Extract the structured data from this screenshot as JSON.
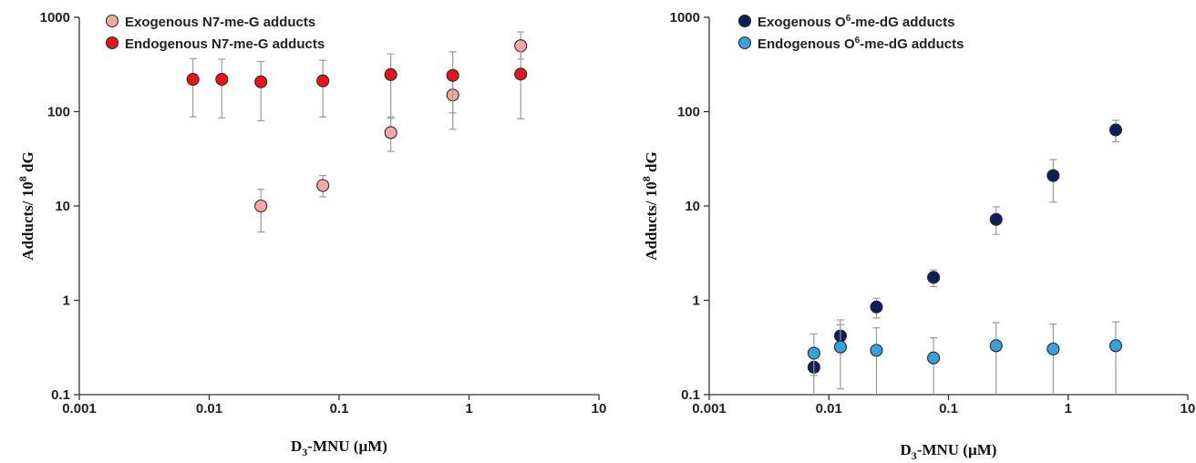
{
  "chart_data": [
    {
      "type": "scatter",
      "xscale": "log",
      "yscale": "log",
      "xlim": [
        0.001,
        10
      ],
      "ylim": [
        0.1,
        1000
      ],
      "xticks": [
        "0.001",
        "0.01",
        "0.1",
        "1",
        "10"
      ],
      "yticks": [
        "0.1",
        "1",
        "10",
        "100",
        "1000"
      ],
      "xlabel": {
        "main": "D",
        "sub": "3",
        "rest": "-MNU (µM)"
      },
      "ylabel": {
        "main": "Adducts/ 10",
        "sup": "8",
        "rest": " dG"
      },
      "legend": "top-left",
      "series": [
        {
          "name": "Exogenous N7-me-G adducts",
          "name_parts": {
            "pre": "Exogenous N7-me-G adducts"
          },
          "color": "#f4a8a4",
          "x": [
            0.025,
            0.075,
            0.25,
            0.75,
            2.5
          ],
          "y": [
            10,
            16.5,
            60,
            150,
            500
          ],
          "err_low": [
            5.3,
            12.5,
            38,
            65,
            360
          ],
          "err_high": [
            15,
            21,
            85,
            240,
            700
          ]
        },
        {
          "name": "Endogenous N7-me-G adducts",
          "name_parts": {
            "pre": "Endogenous N7-me-G adducts"
          },
          "color": "#e8141c",
          "x": [
            0.0075,
            0.0125,
            0.025,
            0.075,
            0.25,
            0.75,
            2.5
          ],
          "y": [
            220,
            220,
            207,
            212,
            247,
            242,
            250
          ],
          "err_low": [
            88,
            86,
            80,
            88,
            88,
            97,
            84
          ],
          "err_high": [
            365,
            360,
            340,
            350,
            410,
            430,
            430
          ]
        }
      ]
    },
    {
      "type": "scatter",
      "xscale": "log",
      "yscale": "log",
      "xlim": [
        0.001,
        10
      ],
      "ylim": [
        0.1,
        1000
      ],
      "xticks": [
        "0.001",
        "0.01",
        "0.1",
        "1",
        "10"
      ],
      "yticks": [
        "0.1",
        "1",
        "10",
        "100",
        "1000"
      ],
      "xlabel": {
        "main": "D",
        "sub": "3",
        "rest": "-MNU (µM)"
      },
      "ylabel": {
        "main": "Adducts/ 10",
        "sup": "8",
        "rest": " dG"
      },
      "legend": "top-left",
      "series": [
        {
          "name": "Exogenous O6-me-dG adducts",
          "name_parts": {
            "pre": "Exogenous O",
            "sup": "6",
            "post": "-me-dG adducts"
          },
          "color": "#0b1f5c",
          "x": [
            0.0075,
            0.0125,
            0.025,
            0.075,
            0.25,
            0.75,
            2.5
          ],
          "y": [
            0.195,
            0.42,
            0.85,
            1.75,
            7.2,
            21,
            64
          ],
          "err_low": [
            0.16,
            0.3,
            0.65,
            1.4,
            5,
            11,
            48
          ],
          "err_high": [
            0.22,
            0.55,
            1.05,
            2.1,
            9.8,
            31,
            81
          ]
        },
        {
          "name": "Endogenous O6-me-dG adducts",
          "name_parts": {
            "pre": "Endogenous O",
            "sup": "6",
            "post": "-me-dG adducts"
          },
          "color": "#3aa0da",
          "x": [
            0.0075,
            0.0125,
            0.025,
            0.075,
            0.25,
            0.75,
            2.5
          ],
          "y": [
            0.275,
            0.32,
            0.295,
            0.245,
            0.33,
            0.305,
            0.33
          ],
          "err_low": [
            0.1,
            0.115,
            0.1,
            0.1,
            0.1,
            0.1,
            0.1
          ],
          "err_high": [
            0.44,
            0.62,
            0.51,
            0.4,
            0.58,
            0.56,
            0.59
          ]
        }
      ]
    }
  ]
}
